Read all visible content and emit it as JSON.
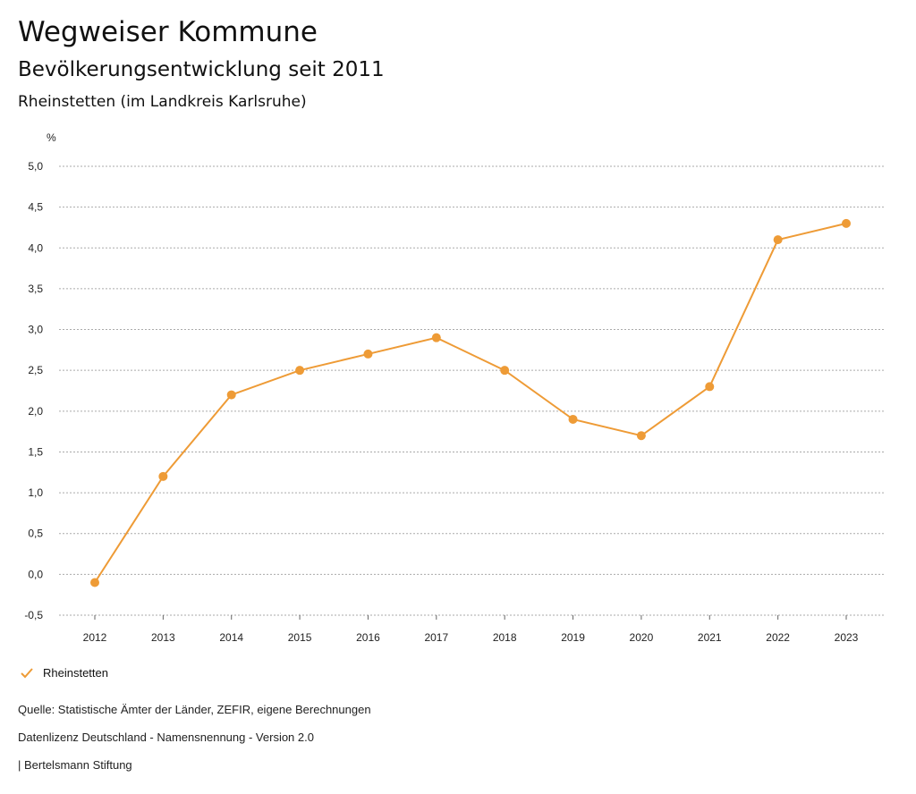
{
  "header": {
    "title": "Wegweiser Kommune",
    "subtitle": "Bevölkerungsentwicklung seit 2011",
    "region": "Rheinstetten (im Landkreis Karlsruhe)"
  },
  "colors": {
    "series": "#ee9b36",
    "grid": "#aaaaaa",
    "axis": "#666666"
  },
  "chart_data": {
    "type": "line",
    "title": "Bevölkerungsentwicklung seit 2011",
    "ylabel": "%",
    "xlabel": "",
    "grid": true,
    "legend_position": "bottom-left",
    "ylim": [
      -0.5,
      5.0
    ],
    "yticks": [
      -0.5,
      0.0,
      0.5,
      1.0,
      1.5,
      2.0,
      2.5,
      3.0,
      3.5,
      4.0,
      4.5,
      5.0
    ],
    "ytick_labels": [
      "-0,5",
      "0,0",
      "0,5",
      "1,0",
      "1,5",
      "2,0",
      "2,5",
      "3,0",
      "3,5",
      "4,0",
      "4,5",
      "5,0"
    ],
    "categories": [
      "2012",
      "2013",
      "2014",
      "2015",
      "2016",
      "2017",
      "2018",
      "2019",
      "2020",
      "2021",
      "2022",
      "2023"
    ],
    "series": [
      {
        "name": "Rheinstetten",
        "values": [
          -0.1,
          1.2,
          2.2,
          2.5,
          2.7,
          2.9,
          2.5,
          1.9,
          1.7,
          2.3,
          4.1,
          4.3
        ]
      }
    ]
  },
  "legend": {
    "label": "Rheinstetten",
    "icon": "check-icon"
  },
  "footer": {
    "source": "Quelle: Statistische Ämter der Länder, ZEFIR, eigene Berechnungen",
    "license": "Datenlizenz Deutschland - Namensnennung - Version 2.0",
    "publisher": "| Bertelsmann Stiftung"
  }
}
